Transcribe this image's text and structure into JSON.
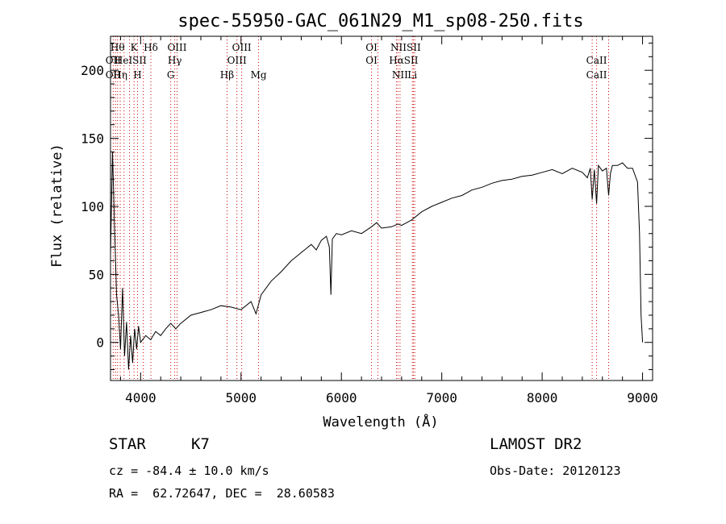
{
  "chart_data": {
    "type": "line",
    "title": "spec-55950-GAC_061N29_M1_sp08-250.fits",
    "xlabel": "Wavelength (Å)",
    "ylabel": "Flux (relative)",
    "xlim": [
      3700,
      9100
    ],
    "ylim": [
      -28,
      225
    ],
    "xticks": [
      4000,
      5000,
      6000,
      7000,
      8000,
      9000
    ],
    "yticks": [
      0,
      50,
      100,
      150,
      200
    ],
    "grid": false,
    "series": [
      {
        "x": [
          3700,
          3720,
          3740,
          3760,
          3780,
          3800,
          3820,
          3840,
          3860,
          3880,
          3900,
          3920,
          3940,
          3960,
          3980,
          4000,
          4050,
          4100,
          4150,
          4200,
          4250,
          4300,
          4350,
          4400,
          4500,
          4600,
          4700,
          4800,
          4900,
          5000,
          5100,
          5150,
          5200,
          5300,
          5400,
          5500,
          5600,
          5700,
          5750,
          5800,
          5850,
          5880,
          5895,
          5910,
          5950,
          6000,
          6100,
          6200,
          6300,
          6350,
          6400,
          6500,
          6563,
          6600,
          6700,
          6800,
          6900,
          7000,
          7100,
          7200,
          7300,
          7400,
          7500,
          7600,
          7700,
          7800,
          7900,
          8000,
          8100,
          8200,
          8300,
          8400,
          8450,
          8480,
          8498,
          8520,
          8542,
          8560,
          8600,
          8640,
          8662,
          8680,
          8700,
          8750,
          8800,
          8850,
          8900,
          8950,
          8970,
          8985,
          9000
        ],
        "y": [
          65,
          140,
          85,
          35,
          20,
          -5,
          40,
          -10,
          15,
          -20,
          5,
          -15,
          10,
          -5,
          12,
          0,
          5,
          2,
          8,
          5,
          10,
          14,
          10,
          14,
          20,
          22,
          24,
          27,
          26,
          24,
          30,
          21,
          35,
          45,
          52,
          60,
          66,
          72,
          68,
          75,
          78,
          70,
          35,
          76,
          80,
          79,
          82,
          80,
          85,
          88,
          84,
          85,
          87,
          86,
          90,
          96,
          100,
          103,
          106,
          108,
          112,
          114,
          117,
          119,
          120,
          122,
          123,
          125,
          127,
          124,
          128,
          125,
          121,
          128,
          105,
          127,
          102,
          130,
          126,
          128,
          108,
          124,
          130,
          130,
          132,
          128,
          128,
          118,
          80,
          20,
          0
        ]
      }
    ],
    "line_marks": [
      {
        "w": 3727,
        "labels": [
          "OII"
        ]
      },
      {
        "w": 3750,
        "labels": [
          "OII"
        ]
      },
      {
        "w": 3770,
        "labels": [
          "Hθ"
        ]
      },
      {
        "w": 3797,
        "labels": [
          "Hη"
        ]
      },
      {
        "w": 3835,
        "labels": [
          "HeI"
        ]
      },
      {
        "w": 3889,
        "labels": []
      },
      {
        "w": 3934,
        "labels": [
          "K"
        ]
      },
      {
        "w": 3969,
        "labels": [
          "H"
        ]
      },
      {
        "w": 4026,
        "labels": [
          "SII"
        ]
      },
      {
        "w": 4102,
        "labels": [
          "Hδ"
        ]
      },
      {
        "w": 4300,
        "labels": [
          "G"
        ]
      },
      {
        "w": 4340,
        "labels": [
          "Hγ"
        ]
      },
      {
        "w": 4363,
        "labels": [
          "OIII"
        ]
      },
      {
        "w": 4861,
        "labels": [
          "Hβ"
        ]
      },
      {
        "w": 4959,
        "labels": [
          "OIII"
        ]
      },
      {
        "w": 5007,
        "labels": [
          "OIII"
        ]
      },
      {
        "w": 5175,
        "labels": [
          "Mg"
        ]
      },
      {
        "w": 6300,
        "labels": [
          "OI"
        ]
      },
      {
        "w": 6364,
        "labels": [
          "OI"
        ]
      },
      {
        "w": 6548,
        "labels": [
          "NII"
        ]
      },
      {
        "w": 6563,
        "labels": [
          "Hα"
        ]
      },
      {
        "w": 6584,
        "labels": [
          "NII"
        ]
      },
      {
        "w": 6707,
        "labels": [
          "Li"
        ]
      },
      {
        "w": 6717,
        "labels": [
          "SII"
        ]
      },
      {
        "w": 6731,
        "labels": [
          "SII"
        ]
      },
      {
        "w": 8498,
        "labels": []
      },
      {
        "w": 8542,
        "labels": [
          "CaII"
        ]
      },
      {
        "w": 8662,
        "labels": []
      }
    ],
    "top_labels": [
      {
        "text": "Hθ",
        "w": 3770,
        "row": 1
      },
      {
        "text": "K",
        "w": 3934,
        "row": 1
      },
      {
        "text": "Hδ",
        "w": 4102,
        "row": 1
      },
      {
        "text": "OIII",
        "w": 4363,
        "row": 1
      },
      {
        "text": "OIII",
        "w": 5007,
        "row": 1
      },
      {
        "text": "OI",
        "w": 6300,
        "row": 1
      },
      {
        "text": "NIISII",
        "w": 6640,
        "row": 1
      },
      {
        "text": "OII",
        "w": 3727,
        "row": 2
      },
      {
        "text": "HeISII",
        "w": 3900,
        "row": 2
      },
      {
        "text": "Hγ",
        "w": 4340,
        "row": 2
      },
      {
        "text": "OIII",
        "w": 4959,
        "row": 2
      },
      {
        "text": "OI",
        "w": 6300,
        "row": 2
      },
      {
        "text": "HαSII",
        "w": 6620,
        "row": 2
      },
      {
        "text": "CaII",
        "w": 8542,
        "row": 2
      },
      {
        "text": "OII",
        "w": 3727,
        "row": 3
      },
      {
        "text": "Hη",
        "w": 3797,
        "row": 3
      },
      {
        "text": "H",
        "w": 3969,
        "row": 3
      },
      {
        "text": "G",
        "w": 4300,
        "row": 3
      },
      {
        "text": "Hβ",
        "w": 4861,
        "row": 3
      },
      {
        "text": "Mg",
        "w": 5175,
        "row": 3
      },
      {
        "text": "NII",
        "w": 6584,
        "row": 3
      },
      {
        "text": "Li",
        "w": 6707,
        "row": 3
      },
      {
        "text": "CaII",
        "w": 8542,
        "row": 3
      }
    ]
  },
  "info": {
    "object_class": "STAR",
    "subclass": "K7",
    "redshift": "cz = -84.4 ± 10.0 km/s",
    "coords": "RA =  62.72647, DEC =  28.60583",
    "survey": "LAMOST DR2",
    "obs_date": "Obs-Date: 20120123"
  },
  "colors": {
    "axis": "#000000",
    "spectrum": "#000000",
    "line_marker": "#cc0000"
  }
}
